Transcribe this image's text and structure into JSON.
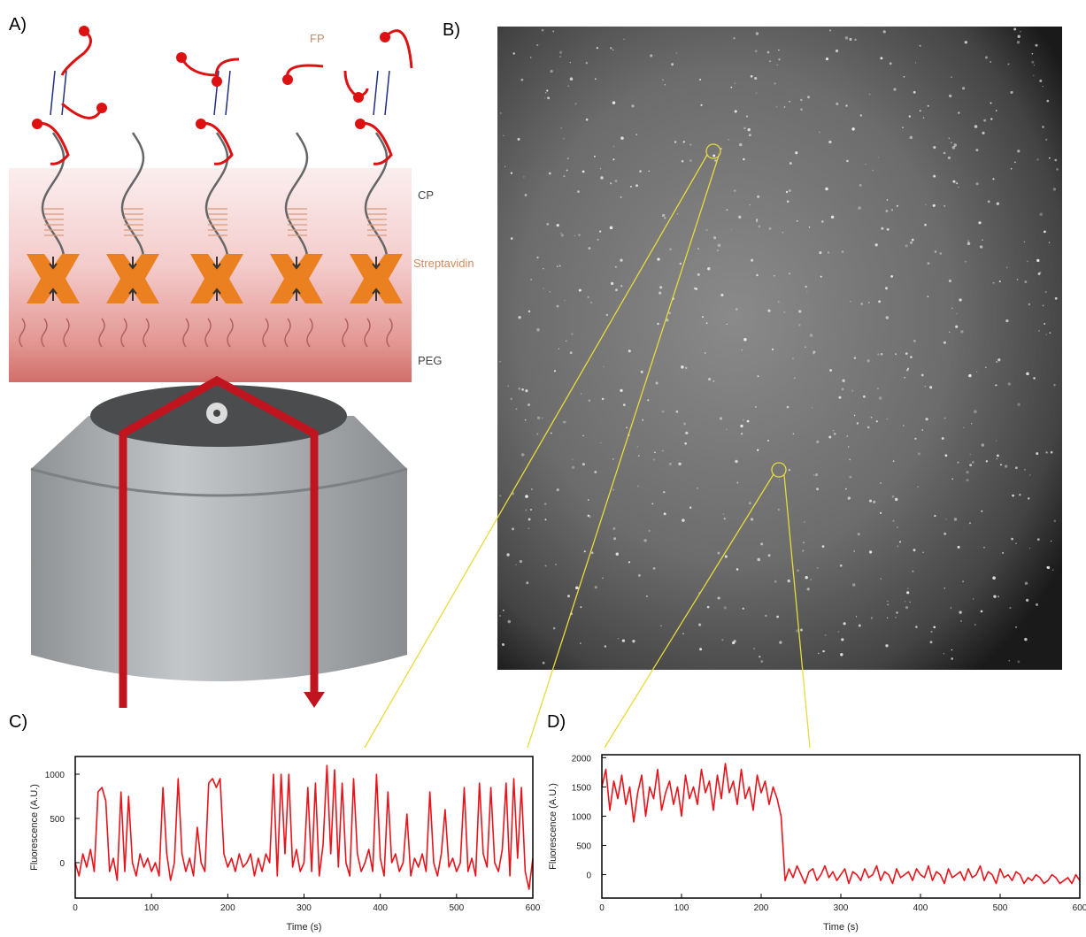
{
  "panels": {
    "a": "A)",
    "b": "B)",
    "c": "C)",
    "d": "D)"
  },
  "schematic": {
    "fp": "FP",
    "cp": "CP",
    "streptavidin": "Streptavidin",
    "peg": "PEG"
  },
  "chart_data": [
    {
      "type": "line",
      "color": "#e8141c",
      "xlabel": "Time (s)",
      "ylabel": "Fluorescence (A.U.)",
      "xlim": [
        0,
        600
      ],
      "xticks": [
        0,
        100,
        200,
        300,
        400,
        500,
        600
      ],
      "ylim": [
        -400,
        1200
      ],
      "yticks": [
        0,
        500,
        1000
      ],
      "x": [
        0,
        5,
        10,
        15,
        20,
        25,
        30,
        35,
        40,
        45,
        50,
        55,
        60,
        65,
        70,
        75,
        80,
        85,
        90,
        95,
        100,
        105,
        110,
        115,
        120,
        125,
        130,
        135,
        140,
        145,
        150,
        155,
        160,
        165,
        170,
        175,
        180,
        185,
        190,
        195,
        200,
        205,
        210,
        215,
        220,
        225,
        230,
        235,
        240,
        245,
        250,
        255,
        260,
        265,
        270,
        275,
        280,
        285,
        290,
        295,
        300,
        305,
        310,
        315,
        320,
        325,
        330,
        335,
        340,
        345,
        350,
        355,
        360,
        365,
        370,
        375,
        380,
        385,
        390,
        395,
        400,
        405,
        410,
        415,
        420,
        425,
        430,
        435,
        440,
        445,
        450,
        455,
        460,
        465,
        470,
        475,
        480,
        485,
        490,
        495,
        500,
        505,
        510,
        515,
        520,
        525,
        530,
        535,
        540,
        545,
        550,
        555,
        560,
        565,
        570,
        575,
        580,
        585,
        590,
        595,
        600
      ],
      "values": [
        0,
        -150,
        100,
        -50,
        150,
        -100,
        800,
        850,
        700,
        -100,
        50,
        -200,
        800,
        -100,
        750,
        0,
        -150,
        100,
        -50,
        50,
        -100,
        0,
        -150,
        850,
        100,
        -200,
        0,
        950,
        100,
        -100,
        50,
        -150,
        400,
        0,
        -100,
        900,
        950,
        850,
        950,
        100,
        -50,
        50,
        -100,
        100,
        -50,
        0,
        100,
        -150,
        50,
        -100,
        100,
        0,
        1000,
        -150,
        1000,
        100,
        1000,
        -50,
        150,
        -100,
        0,
        850,
        -100,
        900,
        -150,
        200,
        1100,
        100,
        1050,
        -50,
        900,
        0,
        -150,
        950,
        100,
        -100,
        0,
        150,
        -100,
        1000,
        50,
        -150,
        800,
        0,
        100,
        -100,
        0,
        550,
        -150,
        50,
        -50,
        100,
        -100,
        800,
        0,
        -150,
        100,
        600,
        -50,
        50,
        -100,
        0,
        850,
        -100,
        50,
        -150,
        900,
        100,
        -50,
        850,
        0,
        -100,
        150,
        900,
        -150,
        950,
        50,
        850,
        -100,
        -300,
        50
      ]
    },
    {
      "type": "line",
      "color": "#e8141c",
      "xlabel": "Time (s)",
      "ylabel": "Fluorescence (A.U.)",
      "xlim": [
        0,
        600
      ],
      "xticks": [
        0,
        100,
        200,
        300,
        400,
        500,
        600
      ],
      "ylim": [
        -400,
        2050
      ],
      "yticks": [
        0,
        500,
        1000,
        1500,
        2000
      ],
      "x": [
        0,
        5,
        10,
        15,
        20,
        25,
        30,
        35,
        40,
        45,
        50,
        55,
        60,
        65,
        70,
        75,
        80,
        85,
        90,
        95,
        100,
        105,
        110,
        115,
        120,
        125,
        130,
        135,
        140,
        145,
        150,
        155,
        160,
        165,
        170,
        175,
        180,
        185,
        190,
        195,
        200,
        205,
        210,
        215,
        220,
        225,
        230,
        235,
        240,
        245,
        250,
        255,
        260,
        265,
        270,
        275,
        280,
        285,
        290,
        295,
        300,
        305,
        310,
        315,
        320,
        325,
        330,
        335,
        340,
        345,
        350,
        355,
        360,
        365,
        370,
        375,
        380,
        385,
        390,
        395,
        400,
        405,
        410,
        415,
        420,
        425,
        430,
        435,
        440,
        445,
        450,
        455,
        460,
        465,
        470,
        475,
        480,
        485,
        490,
        495,
        500,
        505,
        510,
        515,
        520,
        525,
        530,
        535,
        540,
        545,
        550,
        555,
        560,
        565,
        570,
        575,
        580,
        585,
        590,
        595,
        600
      ],
      "values": [
        1500,
        1800,
        1100,
        1600,
        1300,
        1700,
        1200,
        1500,
        900,
        1400,
        1700,
        1000,
        1500,
        1300,
        1800,
        1100,
        1400,
        1600,
        1200,
        1500,
        1000,
        1700,
        1300,
        1500,
        1200,
        1800,
        1400,
        1600,
        1100,
        1700,
        1300,
        1900,
        1400,
        1600,
        1200,
        1800,
        1300,
        1500,
        1100,
        1700,
        1400,
        1600,
        1200,
        1500,
        1300,
        1000,
        -100,
        100,
        -50,
        150,
        0,
        -150,
        50,
        100,
        -100,
        0,
        150,
        -50,
        50,
        -100,
        0,
        100,
        -150,
        50,
        0,
        -100,
        100,
        -50,
        0,
        150,
        -100,
        50,
        0,
        -150,
        100,
        -50,
        0,
        50,
        -100,
        100,
        0,
        -50,
        150,
        -100,
        50,
        0,
        -150,
        100,
        -50,
        0,
        50,
        -100,
        100,
        -50,
        0,
        150,
        -100,
        50,
        0,
        -150,
        100,
        -50,
        0,
        -100,
        50,
        0,
        -150,
        -50,
        -100,
        0,
        -50,
        -150,
        -100,
        0,
        -50,
        -150,
        -100,
        -50,
        -150,
        0,
        -100
      ]
    }
  ]
}
